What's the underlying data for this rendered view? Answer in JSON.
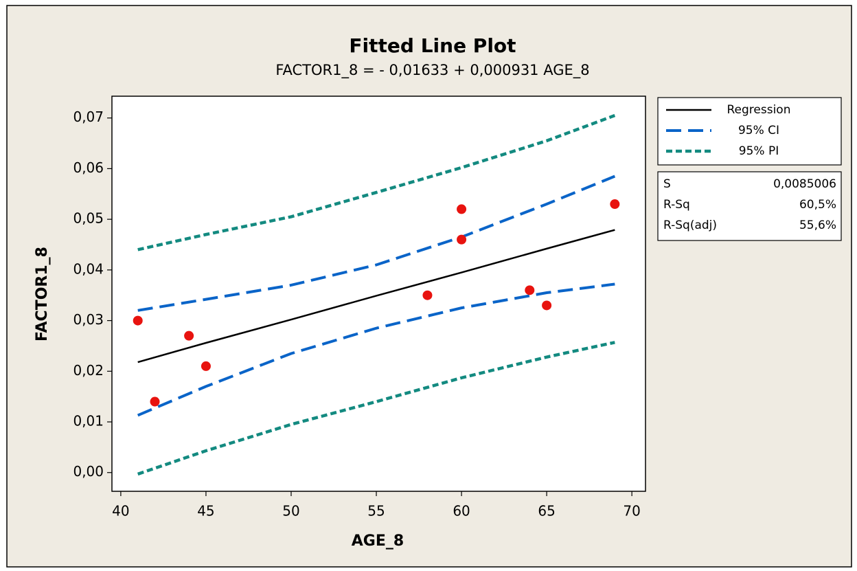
{
  "chart_data": {
    "type": "scatter",
    "title": "Fitted Line Plot",
    "subtitle": "FACTOR1_8 =  - 0,01633 + 0,000931 AGE_8",
    "xlabel": "AGE_8",
    "ylabel": "FACTOR1_8",
    "xlim": [
      39.48,
      70.8
    ],
    "ylim": [
      -0.0037,
      0.0743
    ],
    "xticks": [
      40,
      45,
      50,
      55,
      60,
      65,
      70
    ],
    "yticks": [
      {
        "value": 0.0,
        "label": "0,00"
      },
      {
        "value": 0.01,
        "label": "0,01"
      },
      {
        "value": 0.02,
        "label": "0,02"
      },
      {
        "value": 0.03,
        "label": "0,03"
      },
      {
        "value": 0.04,
        "label": "0,04"
      },
      {
        "value": 0.05,
        "label": "0,05"
      },
      {
        "value": 0.06,
        "label": "0,06"
      },
      {
        "value": 0.07,
        "label": "0,07"
      }
    ],
    "grid": false,
    "points": {
      "color": "#e8130f",
      "x": [
        41,
        42,
        44,
        45,
        58,
        60,
        60,
        64,
        65,
        69
      ],
      "y": [
        0.03,
        0.014,
        0.027,
        0.021,
        0.035,
        0.052,
        0.046,
        0.036,
        0.033,
        0.053
      ]
    },
    "series": [
      {
        "name": "Regression",
        "color": "#000000",
        "style": "solid",
        "x": [
          41,
          45,
          50,
          55,
          60,
          65,
          69
        ],
        "values": [
          0.0218,
          0.0256,
          0.0302,
          0.0349,
          0.0395,
          0.0442,
          0.0479
        ]
      },
      {
        "name": "95% CI",
        "color": "#0a64c8",
        "style": "dashed",
        "x": [
          41,
          45,
          50,
          55,
          60,
          65,
          69
        ],
        "values": [
          0.032,
          0.0342,
          0.037,
          0.041,
          0.0465,
          0.053,
          0.0585
        ],
        "lower": [
          0.0113,
          0.017,
          0.0235,
          0.0285,
          0.0325,
          0.0355,
          0.0372
        ]
      },
      {
        "name": "95% PI",
        "color": "#138a80",
        "style": "dotted",
        "x": [
          41,
          45,
          50,
          55,
          60,
          65,
          69
        ],
        "values": [
          0.044,
          0.047,
          0.0505,
          0.0553,
          0.0602,
          0.0655,
          0.0705
        ],
        "lower": [
          -0.0003,
          0.0043,
          0.0095,
          0.014,
          0.0187,
          0.0228,
          0.0257
        ]
      }
    ],
    "stats": [
      {
        "label": "S",
        "value": "0,0085006"
      },
      {
        "label": "R-Sq",
        "value": "60,5%"
      },
      {
        "label": "R-Sq(adj)",
        "value": "55,6%"
      }
    ]
  }
}
